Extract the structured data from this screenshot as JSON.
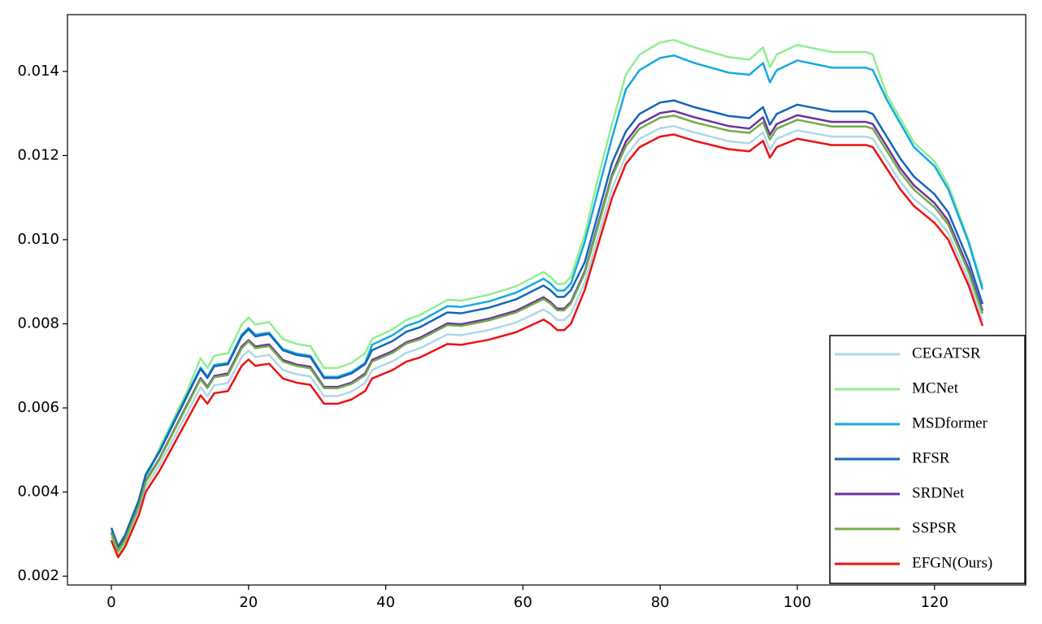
{
  "chart_data": {
    "type": "line",
    "x": [
      0,
      1,
      2,
      4,
      5,
      7,
      9,
      11,
      13,
      14,
      15,
      17,
      19,
      20,
      21,
      23,
      25,
      27,
      29,
      31,
      33,
      35,
      37,
      38,
      41,
      43,
      45,
      49,
      51,
      55,
      59,
      63,
      64,
      65,
      66,
      67,
      69,
      71,
      73,
      75,
      77,
      80,
      82,
      85,
      90,
      93,
      95,
      96,
      97,
      100,
      105,
      110,
      111,
      113,
      115,
      117,
      120,
      122,
      125,
      127
    ],
    "series": [
      {
        "name": "CEGATSR",
        "color": "#add8e6",
        "values": [
          0.00294,
          0.00252,
          0.00278,
          0.00355,
          0.00412,
          0.00464,
          0.00525,
          0.00587,
          0.00649,
          0.00628,
          0.00654,
          0.00659,
          0.00721,
          0.00736,
          0.00721,
          0.00726,
          0.0069,
          0.0068,
          0.00675,
          0.00628,
          0.00628,
          0.00639,
          0.00659,
          0.0069,
          0.00711,
          0.00731,
          0.00742,
          0.00775,
          0.00773,
          0.00785,
          0.00803,
          0.00834,
          0.00824,
          0.00809,
          0.00809,
          0.00824,
          0.00898,
          0.0101,
          0.01122,
          0.01199,
          0.0124,
          0.01265,
          0.0127,
          0.01255,
          0.01234,
          0.01229,
          0.01255,
          0.01214,
          0.0124,
          0.0126,
          0.01245,
          0.01245,
          0.0124,
          0.01189,
          0.01138,
          0.01097,
          0.01057,
          0.01016,
          0.00904,
          0.00808
        ]
      },
      {
        "name": "MCNet",
        "color": "#90ee90",
        "values": [
          0.00294,
          0.00252,
          0.00278,
          0.00369,
          0.00428,
          0.00504,
          0.00571,
          0.00638,
          0.00718,
          0.00695,
          0.00724,
          0.0073,
          0.00798,
          0.00815,
          0.00798,
          0.00804,
          0.00764,
          0.00752,
          0.00747,
          0.00695,
          0.00695,
          0.00707,
          0.0073,
          0.00764,
          0.00787,
          0.00809,
          0.00821,
          0.00857,
          0.00855,
          0.00869,
          0.00889,
          0.00923,
          0.00912,
          0.00895,
          0.00895,
          0.00912,
          0.01012,
          0.01149,
          0.01276,
          0.01392,
          0.0144,
          0.01469,
          0.01475,
          0.01457,
          0.01434,
          0.01428,
          0.01457,
          0.0141,
          0.0144,
          0.01463,
          0.01446,
          0.01446,
          0.0144,
          0.01346,
          0.01288,
          0.01231,
          0.01186,
          0.0113,
          0.00997,
          0.0089
        ]
      },
      {
        "name": "MSDformer",
        "color": "#16a8e4",
        "values": [
          0.00315,
          0.00271,
          0.00298,
          0.00381,
          0.00442,
          0.00497,
          0.00564,
          0.0063,
          0.00696,
          0.00674,
          0.00702,
          0.00707,
          0.00774,
          0.0079,
          0.00774,
          0.00779,
          0.0074,
          0.00729,
          0.00724,
          0.00674,
          0.00674,
          0.00685,
          0.00707,
          0.0075,
          0.00773,
          0.00795,
          0.00806,
          0.00842,
          0.0084,
          0.00853,
          0.00874,
          0.00907,
          0.00896,
          0.00879,
          0.00879,
          0.00896,
          0.00994,
          0.01119,
          0.01243,
          0.01357,
          0.01403,
          0.01432,
          0.01438,
          0.0142,
          0.01397,
          0.01392,
          0.0142,
          0.01374,
          0.01403,
          0.01426,
          0.01409,
          0.01409,
          0.01403,
          0.01334,
          0.01277,
          0.0122,
          0.01175,
          0.0112,
          0.00992,
          0.00882
        ]
      },
      {
        "name": "RFSR",
        "color": "#1466b8",
        "values": [
          0.00314,
          0.0027,
          0.00297,
          0.0038,
          0.0044,
          0.00495,
          0.00561,
          0.00627,
          0.00693,
          0.00671,
          0.00699,
          0.00704,
          0.0077,
          0.00787,
          0.0077,
          0.00776,
          0.00737,
          0.00726,
          0.00721,
          0.00671,
          0.00671,
          0.00682,
          0.00704,
          0.00737,
          0.00759,
          0.00781,
          0.00792,
          0.00827,
          0.00825,
          0.00838,
          0.00858,
          0.00891,
          0.0088,
          0.00864,
          0.00864,
          0.0088,
          0.00946,
          0.01064,
          0.01183,
          0.01257,
          0.01299,
          0.01326,
          0.01331,
          0.01315,
          0.01294,
          0.01289,
          0.01315,
          0.01273,
          0.01299,
          0.01321,
          0.01305,
          0.01305,
          0.01299,
          0.01246,
          0.01193,
          0.0115,
          0.01108,
          0.01065,
          0.00948,
          0.00847
        ]
      },
      {
        "name": "SRDNet",
        "color": "#7030a0",
        "values": [
          0.00304,
          0.00261,
          0.00288,
          0.00367,
          0.00426,
          0.00479,
          0.00543,
          0.00607,
          0.00671,
          0.0065,
          0.00676,
          0.00682,
          0.00746,
          0.00761,
          0.00746,
          0.00751,
          0.00714,
          0.00703,
          0.00698,
          0.0065,
          0.0065,
          0.0066,
          0.00682,
          0.00714,
          0.00735,
          0.00756,
          0.00767,
          0.00801,
          0.00799,
          0.00812,
          0.00831,
          0.00863,
          0.00852,
          0.00836,
          0.00836,
          0.00852,
          0.00924,
          0.0104,
          0.01155,
          0.01233,
          0.01275,
          0.01301,
          0.01306,
          0.01291,
          0.0127,
          0.01264,
          0.01291,
          0.01249,
          0.01275,
          0.01296,
          0.0128,
          0.0128,
          0.01275,
          0.01223,
          0.0117,
          0.01129,
          0.01087,
          0.01045,
          0.0093,
          0.00831
        ]
      },
      {
        "name": "SSPSR",
        "color": "#70ad47",
        "values": [
          0.00302,
          0.0026,
          0.00286,
          0.00366,
          0.00424,
          0.00477,
          0.00541,
          0.00604,
          0.00668,
          0.00647,
          0.00673,
          0.00678,
          0.00742,
          0.00758,
          0.00742,
          0.00747,
          0.0071,
          0.007,
          0.00694,
          0.00647,
          0.00647,
          0.00657,
          0.00678,
          0.0071,
          0.00731,
          0.00753,
          0.00763,
          0.00797,
          0.00795,
          0.00808,
          0.00827,
          0.00859,
          0.00848,
          0.00832,
          0.00832,
          0.00848,
          0.0092,
          0.01035,
          0.0115,
          0.01222,
          0.01264,
          0.0129,
          0.01295,
          0.01279,
          0.01259,
          0.01254,
          0.01279,
          0.01238,
          0.01264,
          0.01285,
          0.01269,
          0.01269,
          0.01264,
          0.01212,
          0.0116,
          0.01119,
          0.01077,
          0.01036,
          0.00922,
          0.00824
        ]
      },
      {
        "name": "EFGN(Ours)",
        "color": "#ee1111",
        "values": [
          0.00285,
          0.00245,
          0.0027,
          0.00345,
          0.004,
          0.0045,
          0.0051,
          0.0057,
          0.0063,
          0.0061,
          0.00635,
          0.0064,
          0.007,
          0.00715,
          0.007,
          0.00705,
          0.0067,
          0.0066,
          0.00655,
          0.0061,
          0.0061,
          0.0062,
          0.0064,
          0.0067,
          0.0069,
          0.0071,
          0.0072,
          0.00752,
          0.0075,
          0.00762,
          0.0078,
          0.0081,
          0.008,
          0.00785,
          0.00785,
          0.008,
          0.0088,
          0.0099,
          0.011,
          0.0118,
          0.0122,
          0.01245,
          0.0125,
          0.01235,
          0.01215,
          0.0121,
          0.01235,
          0.01195,
          0.0122,
          0.0124,
          0.01225,
          0.01225,
          0.0122,
          0.0117,
          0.0112,
          0.0108,
          0.0104,
          0.01,
          0.0089,
          0.00795
        ]
      }
    ],
    "xlim": [
      -6.4,
      133.3
    ],
    "ylim": [
      0.00179,
      0.01535
    ],
    "xticks": [
      0,
      20,
      40,
      60,
      80,
      100,
      120
    ],
    "yticks": [
      0.002,
      0.004,
      0.006,
      0.008,
      {
        "value": 0.01,
        "label": "0.010"
      },
      0.012,
      0.014
    ],
    "legend": "lower right"
  }
}
